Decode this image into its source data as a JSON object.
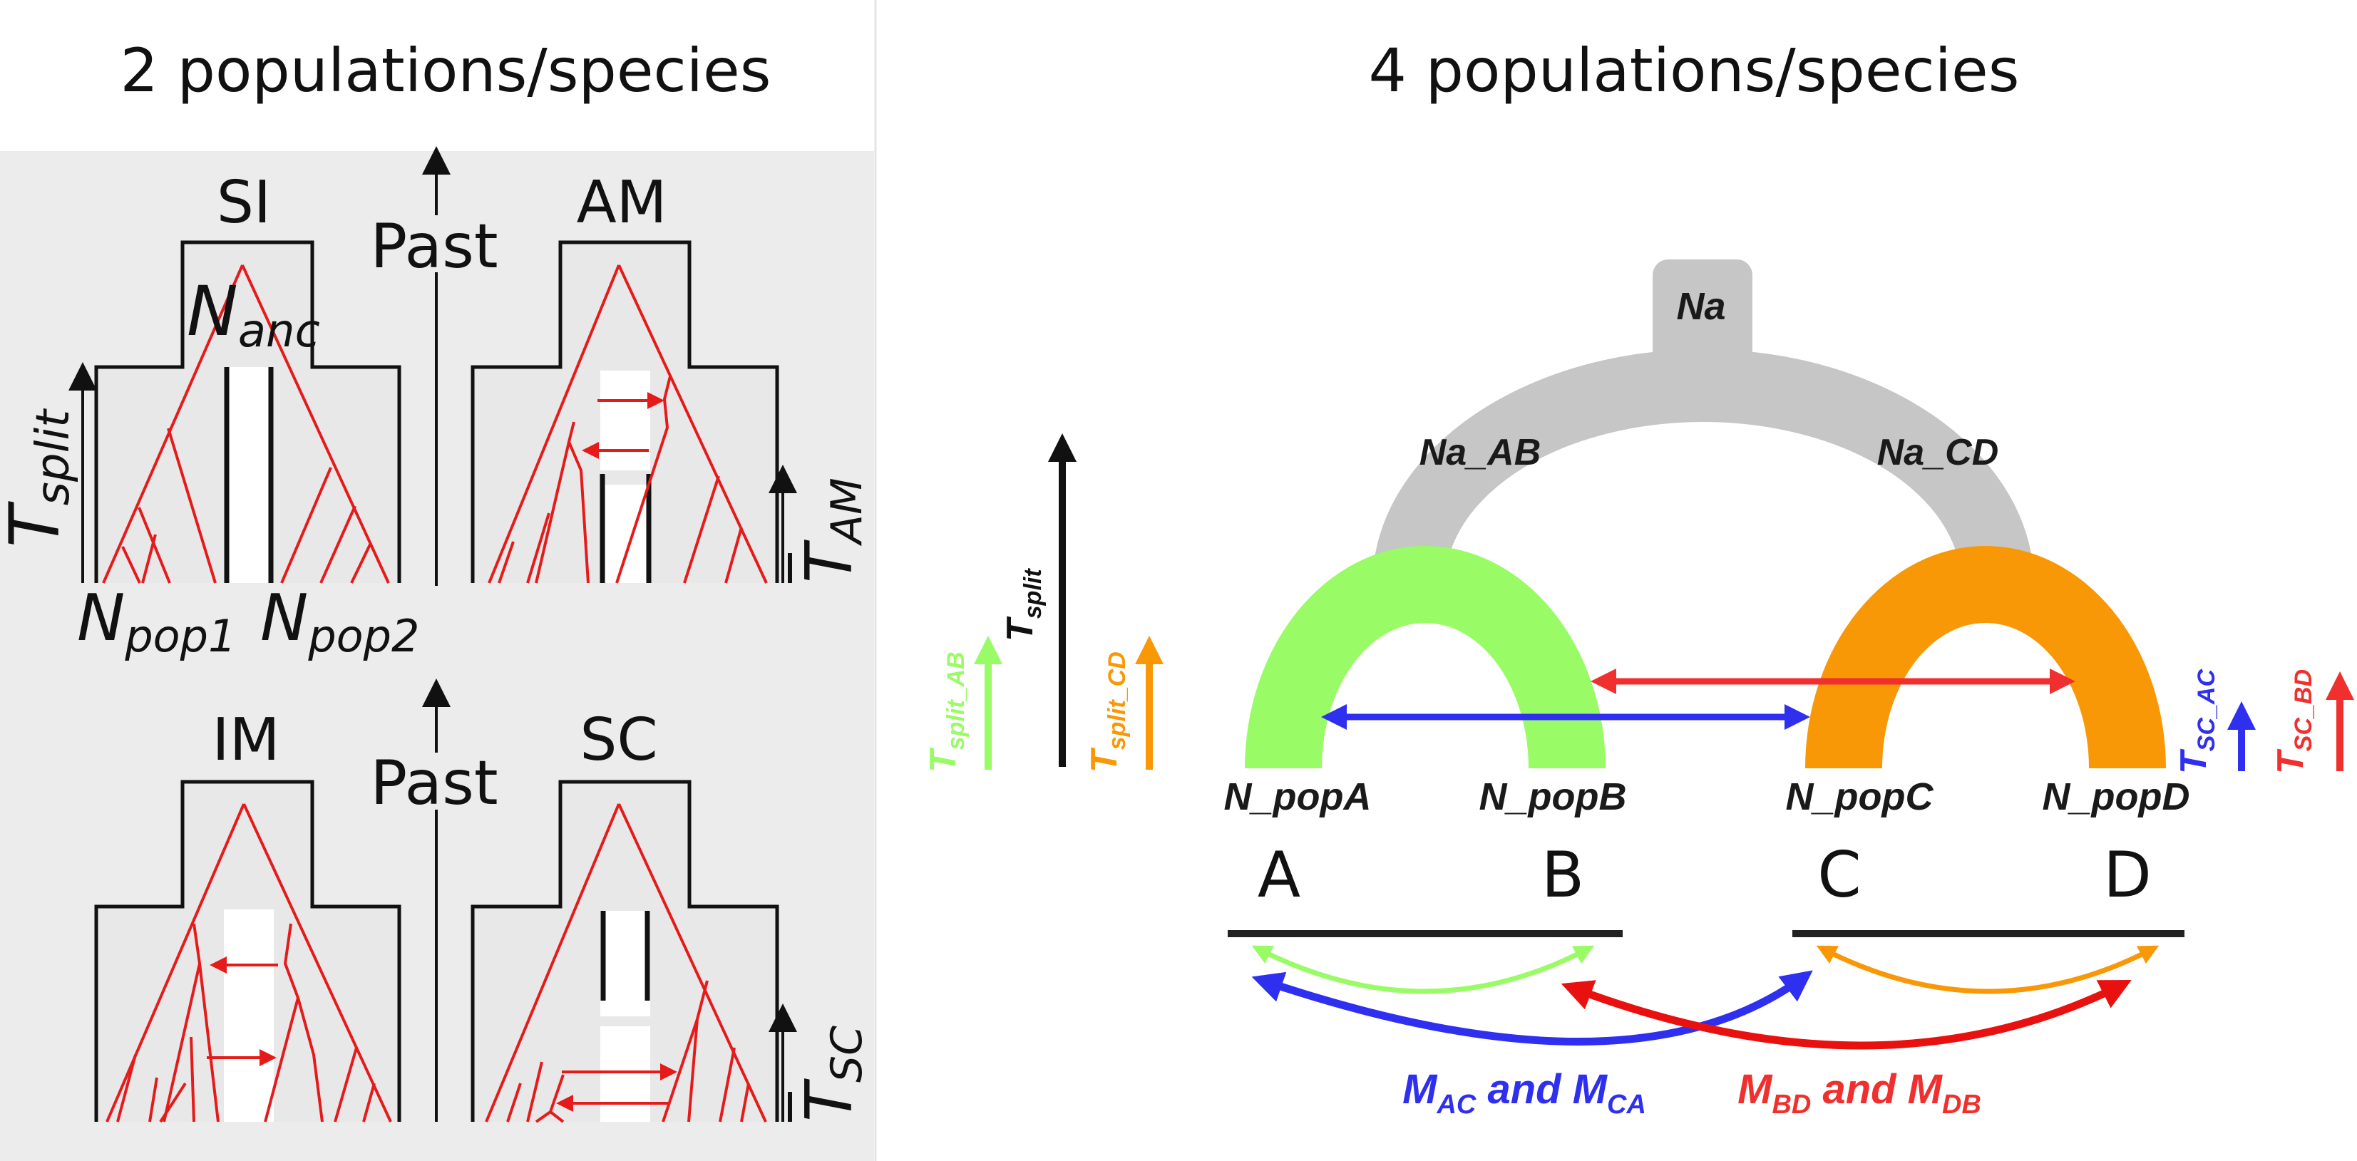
{
  "left": {
    "title": "2 populations/species",
    "models": [
      {
        "label": "SI"
      },
      {
        "label": "AM"
      },
      {
        "label": "IM"
      },
      {
        "label": "SC"
      }
    ],
    "past_label": "Past",
    "n_anc": {
      "base": "N",
      "sub": "anc"
    },
    "n_pop1": {
      "base": "N",
      "sub": "pop1"
    },
    "n_pop2": {
      "base": "N",
      "sub": "pop2"
    },
    "t_split": {
      "base": "T",
      "sub": "split"
    },
    "t_am": {
      "base": "T",
      "sub": "AM"
    },
    "t_sc": {
      "base": "T",
      "sub": "SC"
    }
  },
  "right": {
    "title": "4 populations/species",
    "nodes": {
      "root": "Na",
      "ab": "Na_AB",
      "cd": "Na_CD"
    },
    "pops": [
      "N_popA",
      "N_popB",
      "N_popC",
      "N_popD"
    ],
    "letters": [
      "A",
      "B",
      "C",
      "D"
    ],
    "times": {
      "t_split": {
        "base": "T",
        "sub": "split"
      },
      "t_split_ab": {
        "base": "T",
        "sub": "split_AB"
      },
      "t_split_cd": {
        "base": "T",
        "sub": "split_CD"
      },
      "t_sc_ac": {
        "base": "T",
        "sub": "SC_AC"
      },
      "t_sc_bd": {
        "base": "T",
        "sub": "SC_BD"
      }
    },
    "migration": {
      "ac": {
        "m1": "M",
        "s1": "AC",
        "and": " and ",
        "m2": "M",
        "s2": "CA"
      },
      "bd": {
        "m1": "M",
        "s1": "BD",
        "and": " and ",
        "m2": "M",
        "s2": "DB"
      }
    }
  },
  "colors": {
    "grey_band": "#c6c6c6",
    "panel_bg": "#ececec",
    "green": "#99fb66",
    "orange": "#f99806",
    "blue": "#2f2ff0",
    "red": "#f0302e",
    "tree_red": "#e51b1b"
  }
}
